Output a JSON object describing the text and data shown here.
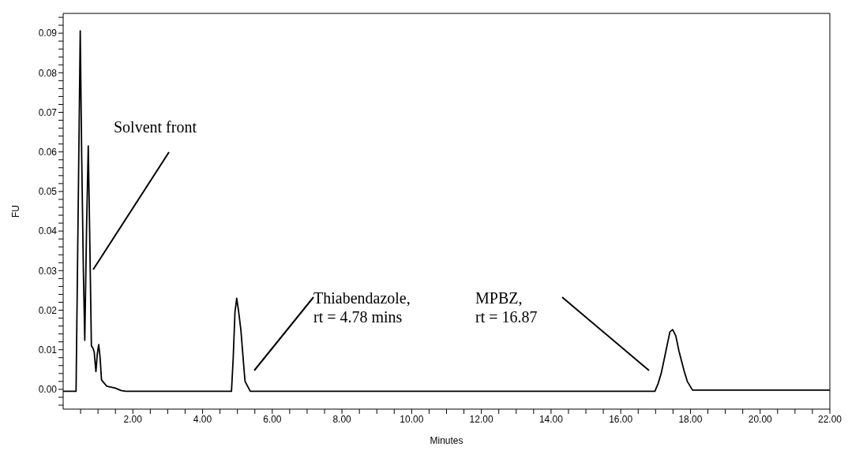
{
  "chart_data": {
    "type": "line",
    "xlabel": "Minutes",
    "ylabel": "FU",
    "color": "#000000",
    "marker": "none",
    "line_style": "solid",
    "grid": false,
    "legend": false,
    "x": [
      0,
      0.37,
      0.45,
      0.49,
      0.53,
      0.58,
      0.62,
      0.67,
      0.72,
      0.76,
      0.81,
      0.85,
      0.89,
      0.94,
      0.98,
      1.02,
      1.06,
      1.1,
      1.25,
      1.5,
      1.66,
      1.8,
      4.83,
      4.88,
      4.93,
      4.98,
      5.03,
      5.1,
      5.19,
      5.22,
      5.37,
      16.98,
      17.07,
      17.16,
      17.28,
      17.41,
      17.49,
      17.58,
      17.67,
      17.82,
      17.91,
      18.06,
      22
    ],
    "values": [
      -0.0005,
      -0.0005,
      0.06,
      0.0906,
      0.06,
      0.03,
      0.0124,
      0.04,
      0.0615,
      0.04,
      0.011,
      0.0105,
      0.0095,
      0.0045,
      0.009,
      0.0113,
      0.008,
      0.0024,
      0.0008,
      0.0003,
      -0.0003,
      -0.0005,
      -0.0005,
      0.008,
      0.0195,
      0.023,
      0.02,
      0.015,
      0.005,
      0.002,
      -0.0005,
      -0.0005,
      0.0014,
      0.004,
      0.009,
      0.0145,
      0.0151,
      0.0135,
      0.0097,
      0.0046,
      0.002,
      -0.0002,
      -0.0002
    ],
    "xlim": [
      0,
      22
    ],
    "ylim": [
      -0.005,
      0.095
    ],
    "xticks": [
      {
        "value": 0.5,
        "label": null
      },
      {
        "value": 1,
        "label": null
      },
      {
        "value": 1.5,
        "label": null
      },
      {
        "value": 2,
        "label": "2.00"
      },
      {
        "value": 2.5,
        "label": null
      },
      {
        "value": 3,
        "label": null
      },
      {
        "value": 3.5,
        "label": null
      },
      {
        "value": 4,
        "label": "4.00"
      },
      {
        "value": 4.5,
        "label": null
      },
      {
        "value": 5,
        "label": null
      },
      {
        "value": 5.5,
        "label": null
      },
      {
        "value": 6,
        "label": "6.00"
      },
      {
        "value": 6.5,
        "label": null
      },
      {
        "value": 7,
        "label": null
      },
      {
        "value": 7.5,
        "label": null
      },
      {
        "value": 8,
        "label": "8.00"
      },
      {
        "value": 8.5,
        "label": null
      },
      {
        "value": 9,
        "label": null
      },
      {
        "value": 9.5,
        "label": null
      },
      {
        "value": 10,
        "label": "10.00"
      },
      {
        "value": 10.5,
        "label": null
      },
      {
        "value": 11,
        "label": null
      },
      {
        "value": 11.5,
        "label": null
      },
      {
        "value": 12,
        "label": "12.00"
      },
      {
        "value": 12.5,
        "label": null
      },
      {
        "value": 13,
        "label": null
      },
      {
        "value": 13.5,
        "label": null
      },
      {
        "value": 14,
        "label": "14.00"
      },
      {
        "value": 14.5,
        "label": null
      },
      {
        "value": 15,
        "label": null
      },
      {
        "value": 15.5,
        "label": null
      },
      {
        "value": 16,
        "label": "16.00"
      },
      {
        "value": 16.5,
        "label": null
      },
      {
        "value": 17,
        "label": null
      },
      {
        "value": 17.5,
        "label": null
      },
      {
        "value": 18,
        "label": "18.00"
      },
      {
        "value": 18.5,
        "label": null
      },
      {
        "value": 19,
        "label": null
      },
      {
        "value": 19.5,
        "label": null
      },
      {
        "value": 20,
        "label": "20.00"
      },
      {
        "value": 20.5,
        "label": null
      },
      {
        "value": 21,
        "label": null
      },
      {
        "value": 21.5,
        "label": null
      },
      {
        "value": 22,
        "label": "22.00"
      }
    ],
    "yticks": [
      {
        "value": -0.004,
        "label": null
      },
      {
        "value": -0.002,
        "label": null
      },
      {
        "value": 0,
        "label": "0.00"
      },
      {
        "value": 0.002,
        "label": null
      },
      {
        "value": 0.004,
        "label": null
      },
      {
        "value": 0.006,
        "label": null
      },
      {
        "value": 0.008,
        "label": null
      },
      {
        "value": 0.01,
        "label": "0.01"
      },
      {
        "value": 0.012,
        "label": null
      },
      {
        "value": 0.014,
        "label": null
      },
      {
        "value": 0.016,
        "label": null
      },
      {
        "value": 0.018,
        "label": null
      },
      {
        "value": 0.02,
        "label": "0.02"
      },
      {
        "value": 0.022,
        "label": null
      },
      {
        "value": 0.024,
        "label": null
      },
      {
        "value": 0.026,
        "label": null
      },
      {
        "value": 0.028,
        "label": null
      },
      {
        "value": 0.03,
        "label": "0.03"
      },
      {
        "value": 0.032,
        "label": null
      },
      {
        "value": 0.034,
        "label": null
      },
      {
        "value": 0.036,
        "label": null
      },
      {
        "value": 0.038,
        "label": null
      },
      {
        "value": 0.04,
        "label": "0.04"
      },
      {
        "value": 0.042,
        "label": null
      },
      {
        "value": 0.044,
        "label": null
      },
      {
        "value": 0.046,
        "label": null
      },
      {
        "value": 0.048,
        "label": null
      },
      {
        "value": 0.05,
        "label": "0.05"
      },
      {
        "value": 0.052,
        "label": null
      },
      {
        "value": 0.054,
        "label": null
      },
      {
        "value": 0.056,
        "label": null
      },
      {
        "value": 0.058,
        "label": null
      },
      {
        "value": 0.06,
        "label": "0.06"
      },
      {
        "value": 0.062,
        "label": null
      },
      {
        "value": 0.064,
        "label": null
      },
      {
        "value": 0.066,
        "label": null
      },
      {
        "value": 0.068,
        "label": null
      },
      {
        "value": 0.07,
        "label": "0.07"
      },
      {
        "value": 0.072,
        "label": null
      },
      {
        "value": 0.074,
        "label": null
      },
      {
        "value": 0.076,
        "label": null
      },
      {
        "value": 0.078,
        "label": null
      },
      {
        "value": 0.08,
        "label": "0.08"
      },
      {
        "value": 0.082,
        "label": null
      },
      {
        "value": 0.084,
        "label": null
      },
      {
        "value": 0.086,
        "label": null
      },
      {
        "value": 0.088,
        "label": null
      },
      {
        "value": 0.09,
        "label": "0.09"
      },
      {
        "value": 0.092,
        "label": null
      },
      {
        "value": 0.094,
        "label": null
      }
    ],
    "annotations": [
      "Solvent front",
      "Thiabendazole,\nrt = 4.78 mins",
      "MPBZ,\nrt = 16.87"
    ]
  }
}
